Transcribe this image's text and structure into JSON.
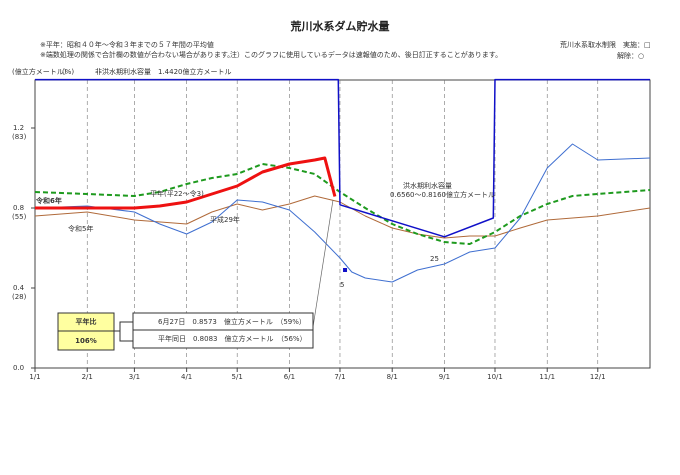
{
  "chart_data": {
    "type": "line",
    "title": "荒川水系ダム貯水量",
    "notes": [
      "※平年：昭和４０年～令和３年までの５７年間の平均値",
      "※端数処理の関係で合計欄の数値が合わない場合があります。"
    ],
    "disclaimer": "注）このグラフに使用しているデータは速報値のため、後日訂正することがあります。",
    "restriction_legend": [
      "荒川水系取水制限　実施：□",
      "解除：○"
    ],
    "y_axis_label": "(億立方メートル)",
    "y_percent_axis_label": "(%)",
    "xlim": [
      0,
      365
    ],
    "xticks": [
      {
        "value": 0,
        "label": "1/1"
      },
      {
        "value": 31,
        "label": "2/1"
      },
      {
        "value": 59,
        "label": "3/1"
      },
      {
        "value": 90,
        "label": "4/1"
      },
      {
        "value": 120,
        "label": "5/1"
      },
      {
        "value": 151,
        "label": "6/1"
      },
      {
        "value": 181,
        "label": "7/1"
      },
      {
        "value": 212,
        "label": "8/1"
      },
      {
        "value": 243,
        "label": "9/1"
      },
      {
        "value": 273,
        "label": "10/1"
      },
      {
        "value": 304,
        "label": "11/1"
      },
      {
        "value": 334,
        "label": "12/1"
      }
    ],
    "ylim": [
      0,
      1.44
    ],
    "yticks": [
      {
        "value": 0,
        "label": "0.0"
      },
      0.4,
      0.8,
      1.2
    ],
    "ytick_percent_labels": [
      {
        "value": 0.4,
        "label": "(28)"
      },
      {
        "value": 0.8,
        "label": "(55)"
      },
      {
        "value": 1.2,
        "label": "(83)"
      }
    ],
    "grid": true,
    "series": [
      {
        "name": "令和5年",
        "color": "#b06a3a",
        "width": 1,
        "dash": "none",
        "x": [
          0,
          31,
          59,
          90,
          105,
          120,
          135,
          151,
          166,
          181,
          196,
          212,
          227,
          243,
          258,
          273,
          288,
          304,
          334,
          365
        ],
        "values": [
          0.76,
          0.78,
          0.74,
          0.72,
          0.78,
          0.82,
          0.79,
          0.82,
          0.86,
          0.83,
          0.76,
          0.7,
          0.67,
          0.65,
          0.66,
          0.66,
          0.7,
          0.74,
          0.76,
          0.8
        ]
      },
      {
        "name": "平成29年",
        "color": "#3f6fd0",
        "width": 1,
        "dash": "none",
        "x": [
          0,
          31,
          59,
          74,
          90,
          105,
          120,
          135,
          151,
          166,
          181,
          188,
          196,
          212,
          227,
          243,
          258,
          273,
          288,
          304,
          319,
          334,
          365
        ],
        "values": [
          0.8,
          0.81,
          0.78,
          0.72,
          0.67,
          0.73,
          0.84,
          0.83,
          0.79,
          0.68,
          0.55,
          0.48,
          0.45,
          0.43,
          0.49,
          0.52,
          0.58,
          0.6,
          0.75,
          1.0,
          1.12,
          1.04,
          1.05
        ]
      },
      {
        "name": "平年(平22～令3)",
        "color": "#1e9a1e",
        "width": 2,
        "dash": "5 3",
        "x": [
          0,
          31,
          59,
          74,
          90,
          105,
          120,
          135,
          151,
          166,
          181,
          196,
          212,
          227,
          243,
          258,
          273,
          288,
          304,
          319,
          334,
          365
        ],
        "values": [
          0.88,
          0.87,
          0.86,
          0.88,
          0.92,
          0.95,
          0.97,
          1.02,
          1.0,
          0.97,
          0.88,
          0.8,
          0.72,
          0.67,
          0.63,
          0.62,
          0.68,
          0.76,
          0.82,
          0.86,
          0.87,
          0.89
        ]
      },
      {
        "name": "洪水期利水容量",
        "color": "#1010c8",
        "width": 1.5,
        "dash": "none",
        "x": [
          0,
          180,
          181,
          243,
          272,
          273,
          365
        ],
        "values": [
          1.442,
          1.442,
          0.816,
          0.656,
          0.75,
          1.442,
          1.442
        ]
      },
      {
        "name": "令和6年",
        "color": "#ee1111",
        "width": 3,
        "dash": "none",
        "x": [
          0,
          31,
          59,
          74,
          90,
          105,
          120,
          135,
          151,
          166,
          172,
          178
        ],
        "values": [
          0.8,
          0.8,
          0.8,
          0.81,
          0.83,
          0.87,
          0.91,
          0.98,
          1.02,
          1.04,
          1.05,
          0.8573
        ]
      }
    ],
    "annotations": [
      "非洪水期利水容量　1.4420億立方メートル",
      "洪水期利水容量",
      "0.6560～0.8160億立方メートル",
      "令和6年",
      "令和5年",
      "平年(平22～令3)",
      "平成29年",
      "5",
      "25"
    ],
    "marker": {
      "x": 184,
      "value": 0.49
    },
    "ratio_box": {
      "label": "平年比",
      "value": "106%"
    },
    "detail_rows": [
      "6月27日　0.8573　億立方メートル　（59%）",
      "平年同日　0.8083　億立方メートル　（56%）"
    ]
  }
}
